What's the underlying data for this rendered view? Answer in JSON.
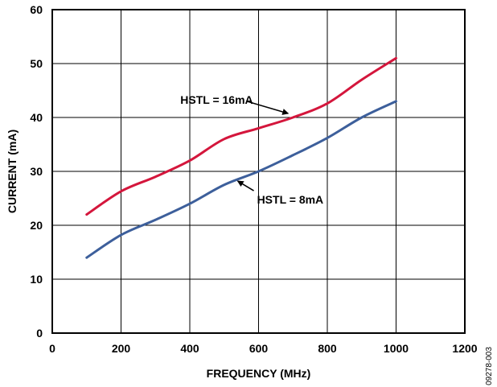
{
  "chart_data": {
    "type": "line",
    "xlabel": "FREQUENCY (MHz)",
    "ylabel": "CURRENT (mA)",
    "xlim": [
      0,
      1200
    ],
    "ylim": [
      0,
      60
    ],
    "xticks": [
      0,
      200,
      400,
      600,
      800,
      1000,
      1200
    ],
    "yticks": [
      0,
      10,
      20,
      30,
      40,
      50,
      60
    ],
    "grid": true,
    "series": [
      {
        "name": "HSTL = 16mA",
        "color": "#d4163c",
        "x": [
          100,
          200,
          300,
          400,
          500,
          600,
          700,
          800,
          900,
          1000
        ],
        "y": [
          22,
          26.3,
          29,
          32,
          36,
          38,
          40,
          42.6,
          47,
          51
        ]
      },
      {
        "name": "HSTL = 8mA",
        "color": "#3d5f9b",
        "x": [
          100,
          200,
          300,
          400,
          500,
          600,
          700,
          800,
          900,
          1000
        ],
        "y": [
          14,
          18.2,
          21,
          24,
          27.5,
          30,
          33,
          36.2,
          40,
          43
        ]
      }
    ],
    "annotations": [
      {
        "text": "HSTL = 16mA",
        "series": 0,
        "x": 700,
        "y": 40
      },
      {
        "text": "HSTL = 8mA",
        "series": 1,
        "x": 530,
        "y": 28.5
      }
    ]
  },
  "figure_id": "09278-003"
}
